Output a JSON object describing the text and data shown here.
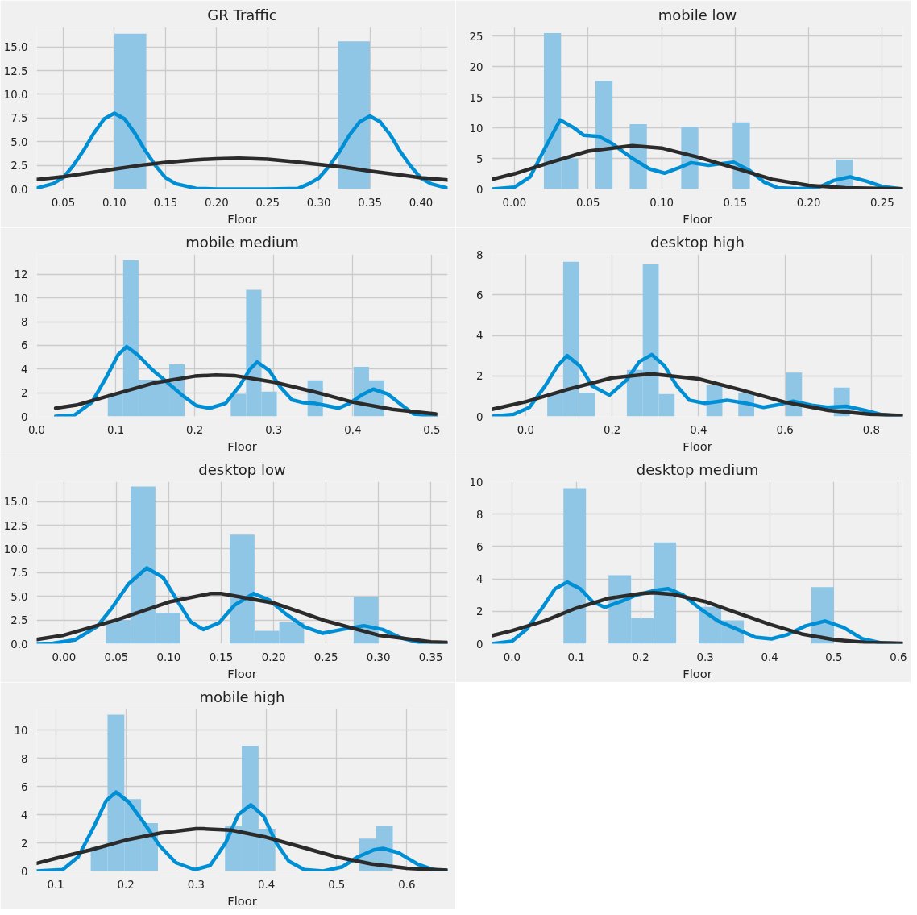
{
  "chart_data": [
    {
      "type": "histogram",
      "title": "GR Traffic",
      "xlabel": "Floor",
      "grid": true,
      "color": "#8fc6e6",
      "bins": [
        0.1,
        0.13125,
        0.1625,
        0.19375,
        0.225,
        0.25625,
        0.2875,
        0.31875,
        0.35
      ],
      "values": [
        16.4,
        0,
        0,
        0,
        0,
        0,
        0,
        15.6
      ],
      "series": [
        {
          "type": "line",
          "color": "#008fd5",
          "x": [
            0.024,
            0.04,
            0.05,
            0.06,
            0.07,
            0.08,
            0.09,
            0.1,
            0.11,
            0.12,
            0.13,
            0.14,
            0.15,
            0.16,
            0.18,
            0.2,
            0.25,
            0.28,
            0.29,
            0.3,
            0.31,
            0.32,
            0.33,
            0.34,
            0.35,
            0.36,
            0.37,
            0.38,
            0.39,
            0.4,
            0.41,
            0.426
          ],
          "values": [
            0.1,
            0.56,
            1.2,
            2.5,
            4.1,
            5.9,
            7.4,
            8.0,
            7.4,
            5.9,
            4.1,
            2.5,
            1.2,
            0.56,
            0.07,
            0.0,
            0.0,
            0.07,
            0.54,
            1.15,
            2.4,
            3.9,
            5.7,
            7.1,
            7.7,
            7.1,
            5.7,
            3.9,
            2.4,
            1.15,
            0.54,
            0.1
          ]
        },
        {
          "type": "line",
          "color": "#2b2b2b",
          "x": [
            0.024,
            0.05,
            0.075,
            0.1,
            0.125,
            0.15,
            0.175,
            0.2,
            0.222,
            0.25,
            0.275,
            0.3,
            0.325,
            0.35,
            0.375,
            0.4,
            0.426
          ],
          "values": [
            1.0,
            1.3,
            1.7,
            2.1,
            2.5,
            2.8,
            3.05,
            3.2,
            3.25,
            3.15,
            2.9,
            2.6,
            2.3,
            1.9,
            1.55,
            1.2,
            0.95
          ]
        }
      ],
      "xlim": [
        0.024,
        0.426
      ],
      "ylim": [
        0,
        17.1
      ],
      "xticks": [
        {
          "value": 0.05,
          "label": "0.05"
        },
        {
          "value": 0.1,
          "label": "0.10"
        },
        {
          "value": 0.15,
          "label": "0.15"
        },
        {
          "value": 0.2,
          "label": "0.20"
        },
        {
          "value": 0.25,
          "label": "0.25"
        },
        {
          "value": 0.3,
          "label": "0.30"
        },
        {
          "value": 0.35,
          "label": "0.35"
        },
        {
          "value": 0.4,
          "label": "0.40"
        }
      ],
      "yticks": [
        {
          "value": 0,
          "label": "0.0"
        },
        2.5,
        {
          "value": 5,
          "label": "5.0"
        },
        7.5,
        {
          "value": 10,
          "label": "10.0"
        },
        12.5,
        {
          "value": 15,
          "label": "15.0"
        }
      ]
    },
    {
      "type": "histogram",
      "title": "mobile low",
      "xlabel": "Floor",
      "grid": true,
      "color": "#8fc6e6",
      "bins": [
        0.02,
        0.03167,
        0.04333,
        0.055,
        0.06667,
        0.07833,
        0.09,
        0.10167,
        0.11333,
        0.125,
        0.13667,
        0.14833,
        0.16,
        0.17167,
        0.18333,
        0.195,
        0.20667,
        0.21833,
        0.23
      ],
      "values": [
        25.5,
        5.0,
        0,
        17.7,
        0,
        10.6,
        0,
        0,
        10.2,
        0,
        0,
        10.9,
        0,
        0,
        0,
        0,
        0,
        4.8
      ],
      "series": [
        {
          "type": "line",
          "color": "#008fd5",
          "x": [
            -0.015,
            0.0,
            0.0107,
            0.021,
            0.031,
            0.0405,
            0.047,
            0.0575,
            0.066,
            0.079,
            0.0917,
            0.102,
            0.111,
            0.12,
            0.132,
            0.149,
            0.16,
            0.17,
            0.179,
            0.192,
            0.207,
            0.217,
            0.228,
            0.239,
            0.25,
            0.264
          ],
          "values": [
            0,
            0.3,
            2.0,
            6.8,
            11.3,
            10.0,
            8.8,
            8.6,
            7.5,
            5.2,
            3.3,
            2.6,
            3.4,
            4.3,
            3.9,
            4.4,
            3.0,
            1.1,
            0.2,
            0.05,
            0.3,
            1.4,
            2.0,
            1.3,
            0.4,
            0
          ]
        },
        {
          "type": "line",
          "color": "#2b2b2b",
          "x": [
            -0.015,
            0.0,
            0.025,
            0.05,
            0.08,
            0.1,
            0.125,
            0.15,
            0.175,
            0.2,
            0.225,
            0.264
          ],
          "values": [
            1.6,
            2.5,
            4.4,
            6.2,
            7.1,
            6.7,
            5.2,
            3.4,
            1.6,
            0.6,
            0.2,
            0.02
          ]
        }
      ],
      "xlim": [
        -0.0153,
        0.264
      ],
      "ylim": [
        0,
        26.5
      ],
      "xticks": [
        {
          "value": 0,
          "label": "0.00"
        },
        0.05,
        {
          "value": 0.1,
          "label": "0.10"
        },
        0.15,
        {
          "value": 0.2,
          "label": "0.20"
        },
        0.25
      ],
      "yticks": [
        0,
        5,
        10,
        15,
        20,
        25
      ]
    },
    {
      "type": "histogram",
      "title": "mobile medium",
      "xlabel": "Floor",
      "grid": true,
      "color": "#8fc6e6",
      "bins": [
        0.09,
        0.10944,
        0.12889,
        0.14833,
        0.16778,
        0.18722,
        0.20667,
        0.22611,
        0.24556,
        0.265,
        0.28444,
        0.30389,
        0.32333,
        0.34278,
        0.36222,
        0.38167,
        0.40111,
        0.42056,
        0.44
      ],
      "values": [
        1.9,
        13.2,
        3.1,
        3.1,
        4.4,
        0,
        0,
        0,
        1.9,
        10.7,
        2.1,
        0,
        0,
        3.05,
        0,
        0,
        4.2,
        3.05
      ],
      "series": [
        {
          "type": "line",
          "color": "#008fd5",
          "x": [
            0.024,
            0.0477,
            0.07,
            0.088,
            0.103,
            0.114,
            0.128,
            0.147,
            0.165,
            0.184,
            0.202,
            0.219,
            0.239,
            0.257,
            0.27,
            0.279,
            0.294,
            0.308,
            0.323,
            0.338,
            0.352,
            0.367,
            0.382,
            0.396,
            0.411,
            0.426,
            0.444,
            0.463,
            0.477,
            0.505
          ],
          "values": [
            0,
            0.1,
            1.2,
            3.3,
            5.2,
            5.9,
            5.2,
            3.9,
            2.9,
            1.8,
            0.9,
            0.7,
            1.1,
            2.6,
            4.0,
            4.6,
            3.9,
            2.5,
            1.4,
            1.15,
            1.1,
            0.9,
            0.7,
            1.1,
            1.8,
            2.3,
            1.9,
            0.9,
            0.2,
            0
          ]
        },
        {
          "type": "line",
          "color": "#2b2b2b",
          "x": [
            0.024,
            0.05,
            0.1,
            0.15,
            0.2,
            0.227,
            0.25,
            0.3,
            0.35,
            0.4,
            0.45,
            0.505
          ],
          "values": [
            0.7,
            0.95,
            1.9,
            2.85,
            3.4,
            3.5,
            3.45,
            2.9,
            2.1,
            1.2,
            0.6,
            0.2
          ]
        }
      ],
      "xlim": [
        0.0,
        0.52
      ],
      "ylim": [
        0,
        13.7
      ],
      "xticks": [
        {
          "value": 0,
          "label": "0.0"
        },
        0.1,
        0.2,
        0.3,
        0.4,
        0.5
      ],
      "yticks": [
        0,
        2,
        4,
        6,
        8,
        10,
        12
      ]
    },
    {
      "type": "histogram",
      "title": "desktop high",
      "xlabel": "Floor",
      "grid": true,
      "color": "#8fc6e6",
      "bins": [
        0.05,
        0.08684,
        0.12368,
        0.16053,
        0.19737,
        0.23421,
        0.27105,
        0.30789,
        0.34474,
        0.38158,
        0.41842,
        0.45526,
        0.49211,
        0.52895,
        0.56579,
        0.60263,
        0.63947,
        0.67632,
        0.71316,
        0.75
      ],
      "values": [
        1.16,
        7.63,
        1.16,
        0,
        0,
        2.3,
        7.5,
        1.1,
        0,
        0,
        1.53,
        0,
        1.16,
        0,
        0,
        2.16,
        0,
        0,
        1.42
      ],
      "series": [
        {
          "type": "line",
          "color": "#008fd5",
          "x": [
            -0.078,
            -0.028,
            0.009,
            0.045,
            0.074,
            0.096,
            0.125,
            0.154,
            0.194,
            0.234,
            0.263,
            0.292,
            0.321,
            0.35,
            0.379,
            0.415,
            0.466,
            0.51,
            0.55,
            0.59,
            0.619,
            0.662,
            0.698,
            0.742,
            0.785,
            0.821,
            0.873
          ],
          "values": [
            0,
            0.1,
            0.45,
            1.5,
            2.5,
            3.0,
            2.5,
            1.5,
            1.05,
            1.8,
            2.7,
            3.05,
            2.5,
            1.5,
            0.8,
            0.65,
            0.8,
            0.65,
            0.45,
            0.6,
            0.75,
            0.55,
            0.45,
            0.5,
            0.3,
            0.1,
            0
          ]
        },
        {
          "type": "line",
          "color": "#2b2b2b",
          "x": [
            -0.078,
            0.0,
            0.1,
            0.2,
            0.29,
            0.4,
            0.5,
            0.6,
            0.7,
            0.8,
            0.873
          ],
          "values": [
            0.35,
            0.72,
            1.35,
            1.9,
            2.1,
            1.85,
            1.3,
            0.7,
            0.3,
            0.1,
            0.04
          ]
        }
      ],
      "xlim": [
        -0.078,
        0.873
      ],
      "ylim": [
        0,
        8.0
      ],
      "xticks": [
        {
          "value": 0,
          "label": "0.0"
        },
        0.2,
        0.4,
        0.6,
        0.8
      ],
      "yticks": [
        0,
        2,
        4,
        6,
        8
      ]
    },
    {
      "type": "histogram",
      "title": "desktop low",
      "xlabel": "Floor",
      "grid": true,
      "color": "#8fc6e6",
      "bins": [
        0.04,
        0.06364,
        0.08727,
        0.11091,
        0.13455,
        0.15818,
        0.18182,
        0.20545,
        0.22909,
        0.25273,
        0.27636,
        0.3
      ],
      "values": [
        2.5,
        16.6,
        3.25,
        0,
        0,
        11.5,
        1.36,
        2.26,
        0,
        0,
        4.95
      ],
      "series": [
        {
          "type": "line",
          "color": "#008fd5",
          "x": [
            -0.026,
            -0.0105,
            0.0105,
            0.0315,
            0.046,
            0.0615,
            0.079,
            0.0945,
            0.1095,
            0.121,
            0.133,
            0.148,
            0.163,
            0.181,
            0.196,
            0.211,
            0.229,
            0.247,
            0.265,
            0.286,
            0.304,
            0.322,
            0.34,
            0.366
          ],
          "values": [
            0,
            0.05,
            0.4,
            1.8,
            3.8,
            6.3,
            8.0,
            7.0,
            4.3,
            2.3,
            1.5,
            2.2,
            4.1,
            5.3,
            4.6,
            3.2,
            1.8,
            1.1,
            1.5,
            1.9,
            1.5,
            0.6,
            0.1,
            0
          ]
        },
        {
          "type": "line",
          "color": "#2b2b2b",
          "x": [
            -0.026,
            0.0,
            0.05,
            0.1,
            0.14,
            0.15,
            0.2,
            0.25,
            0.3,
            0.35,
            0.366
          ],
          "values": [
            0.45,
            0.9,
            2.5,
            4.4,
            5.3,
            5.3,
            4.3,
            2.4,
            0.9,
            0.2,
            0.12
          ]
        }
      ],
      "xlim": [
        -0.026,
        0.366
      ],
      "ylim": [
        0,
        17.1
      ],
      "xticks": [
        {
          "value": 0,
          "label": "0.00"
        },
        0.05,
        {
          "value": 0.1,
          "label": "0.10"
        },
        0.15,
        {
          "value": 0.2,
          "label": "0.20"
        },
        0.25,
        {
          "value": 0.3,
          "label": "0.30"
        },
        0.35
      ],
      "yticks": [
        {
          "value": 0,
          "label": "0.0"
        },
        2.5,
        {
          "value": 5,
          "label": "5.0"
        },
        7.5,
        {
          "value": 10,
          "label": "10.0"
        },
        12.5,
        {
          "value": 15,
          "label": "15.0"
        }
      ]
    },
    {
      "type": "histogram",
      "title": "desktop medium",
      "xlabel": "Floor",
      "grid": true,
      "color": "#8fc6e6",
      "bins": [
        0.08,
        0.115,
        0.15,
        0.185,
        0.22,
        0.255,
        0.29,
        0.325,
        0.36,
        0.395,
        0.43,
        0.465,
        0.5
      ],
      "values": [
        9.6,
        0,
        4.23,
        1.58,
        6.26,
        0,
        2.28,
        1.44,
        0,
        0,
        0,
        3.5
      ],
      "series": [
        {
          "type": "line",
          "color": "#008fd5",
          "x": [
            -0.031,
            0.0,
            0.023,
            0.047,
            0.067,
            0.086,
            0.106,
            0.125,
            0.144,
            0.169,
            0.193,
            0.223,
            0.242,
            0.266,
            0.291,
            0.32,
            0.349,
            0.378,
            0.403,
            0.427,
            0.456,
            0.486,
            0.515,
            0.544,
            0.573,
            0.607
          ],
          "values": [
            0,
            0.15,
            0.9,
            2.2,
            3.4,
            3.8,
            3.4,
            2.6,
            2.25,
            2.6,
            3.0,
            3.3,
            3.4,
            3.0,
            2.2,
            1.4,
            0.9,
            0.4,
            0.3,
            0.55,
            1.1,
            1.4,
            1.0,
            0.3,
            0.05,
            0
          ]
        },
        {
          "type": "line",
          "color": "#2b2b2b",
          "x": [
            -0.031,
            0.0,
            0.05,
            0.1,
            0.15,
            0.2,
            0.22,
            0.25,
            0.3,
            0.35,
            0.4,
            0.45,
            0.5,
            0.55,
            0.607
          ],
          "values": [
            0.5,
            0.8,
            1.4,
            2.2,
            2.8,
            3.1,
            3.15,
            3.05,
            2.6,
            1.9,
            1.2,
            0.6,
            0.25,
            0.08,
            0.02
          ]
        }
      ],
      "xlim": [
        -0.031,
        0.607
      ],
      "ylim": [
        0,
        10
      ],
      "xticks": [
        {
          "value": 0,
          "label": "0.0"
        },
        0.1,
        0.2,
        0.3,
        0.4,
        0.5,
        0.6
      ],
      "yticks": [
        0,
        2,
        4,
        6,
        8,
        10
      ]
    },
    {
      "type": "histogram",
      "title": "mobile high",
      "xlabel": "Floor",
      "grid": true,
      "color": "#8fc6e6",
      "bins": [
        0.15,
        0.17389,
        0.19778,
        0.22167,
        0.24556,
        0.26944,
        0.29333,
        0.31722,
        0.34111,
        0.365,
        0.38889,
        0.41278,
        0.43667,
        0.46056,
        0.48444,
        0.50833,
        0.53222,
        0.55611,
        0.58
      ],
      "values": [
        1.7,
        11.1,
        5.1,
        3.4,
        0,
        0,
        0,
        0,
        3.2,
        8.9,
        3.0,
        0,
        0,
        0,
        0,
        0,
        2.3,
        3.2
      ],
      "series": [
        {
          "type": "line",
          "color": "#008fd5",
          "x": [
            0.073,
            0.11,
            0.132,
            0.155,
            0.172,
            0.186,
            0.204,
            0.226,
            0.248,
            0.271,
            0.298,
            0.32,
            0.342,
            0.36,
            0.378,
            0.396,
            0.414,
            0.432,
            0.454,
            0.481,
            0.508,
            0.53,
            0.553,
            0.566,
            0.588,
            0.615,
            0.638,
            0.658
          ],
          "values": [
            0,
            0.1,
            1.0,
            3.2,
            5.0,
            5.6,
            4.9,
            3.4,
            1.8,
            0.6,
            0.1,
            0.4,
            2.0,
            4.0,
            4.7,
            3.9,
            2.0,
            0.7,
            0.1,
            0.0,
            0.3,
            1.0,
            1.5,
            1.6,
            1.3,
            0.5,
            0.1,
            0
          ]
        },
        {
          "type": "line",
          "color": "#2b2b2b",
          "x": [
            0.073,
            0.1,
            0.15,
            0.2,
            0.25,
            0.3,
            0.31,
            0.35,
            0.4,
            0.45,
            0.5,
            0.55,
            0.6,
            0.658
          ],
          "values": [
            0.55,
            0.9,
            1.5,
            2.2,
            2.7,
            3.0,
            3.0,
            2.9,
            2.4,
            1.7,
            1.0,
            0.5,
            0.2,
            0.06
          ]
        }
      ],
      "xlim": [
        0.073,
        0.658
      ],
      "ylim": [
        0,
        11.5
      ],
      "xticks": [
        0.1,
        0.2,
        0.3,
        0.4,
        0.5,
        0.6
      ],
      "yticks": [
        0,
        2,
        4,
        6,
        8,
        10
      ]
    }
  ]
}
